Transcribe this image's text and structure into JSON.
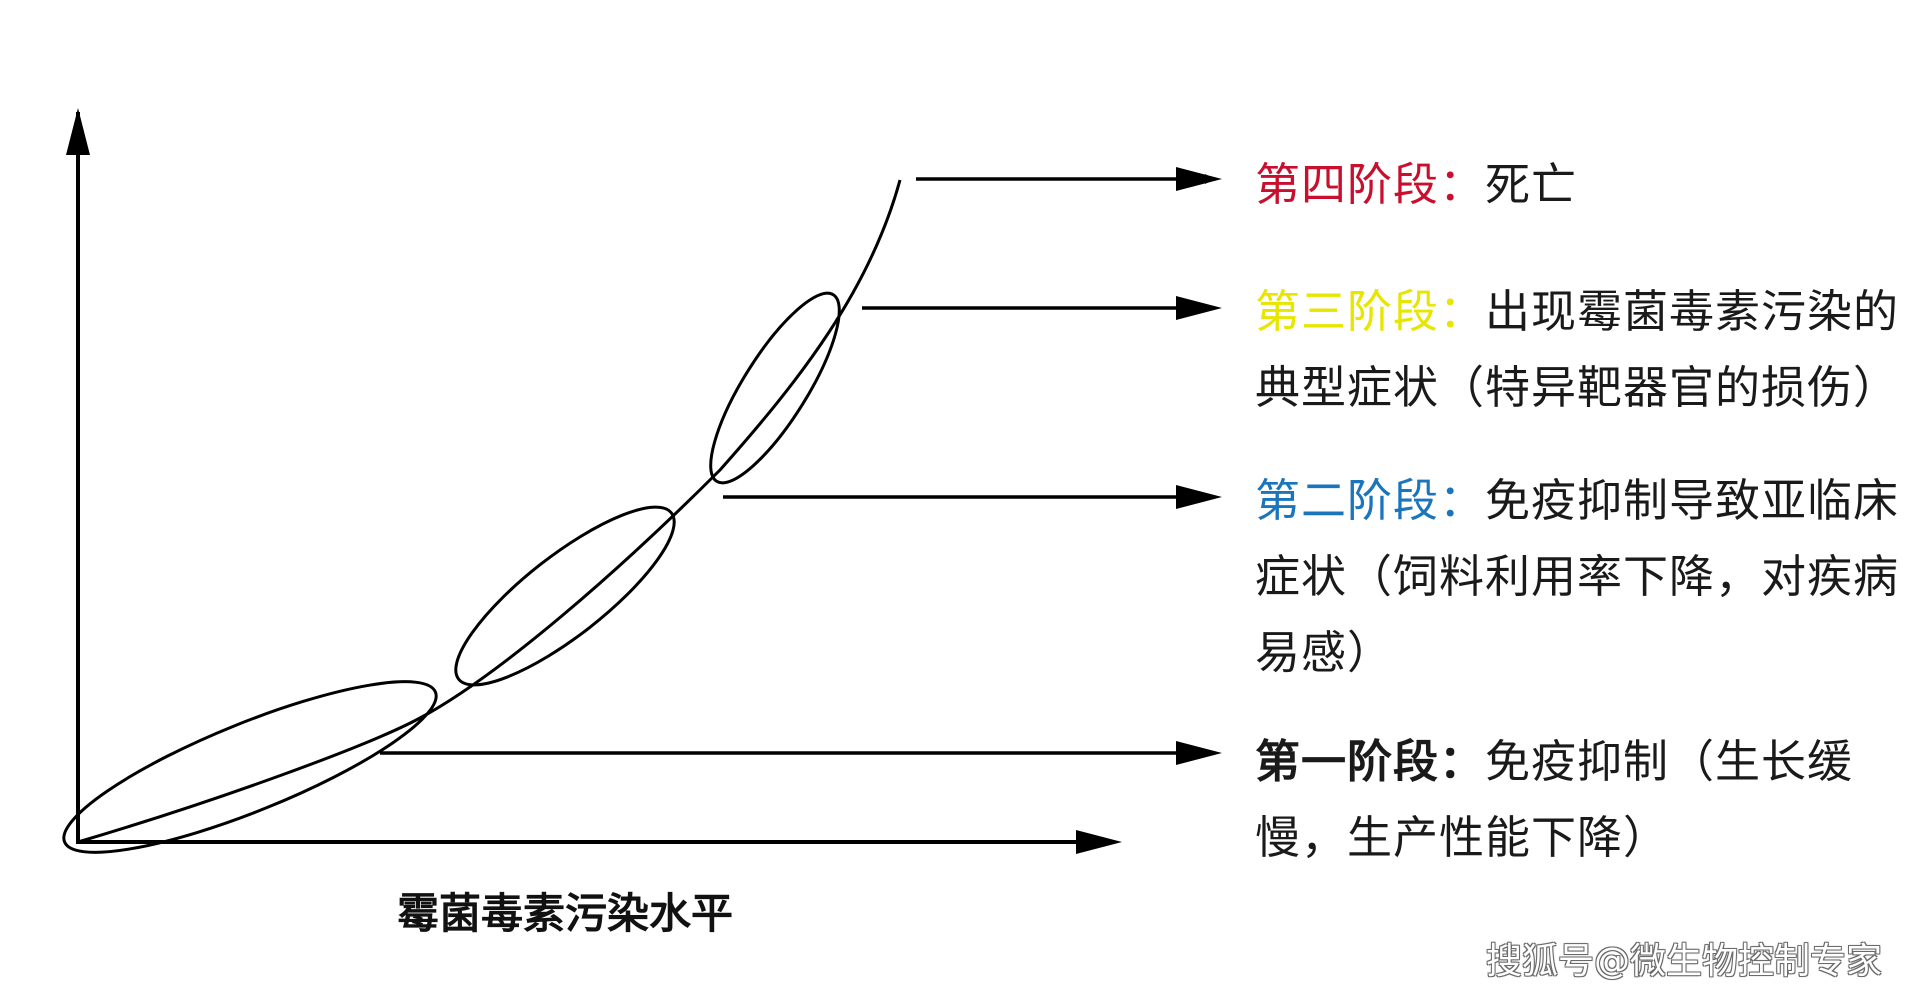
{
  "colors": {
    "stage4": "#c8102e",
    "stage3": "#e6e600",
    "stage2": "#1a75bc",
    "stage1": "#1a1a1a",
    "text": "#1a1a1a"
  },
  "x_axis_label": "霉菌毒素污染水平",
  "stages": {
    "stage4": {
      "label": "第四阶段：",
      "text": "死亡"
    },
    "stage3": {
      "label": "第三阶段：",
      "text": "出现霉菌毒素污染的典型症状（特异靶器官的损伤）"
    },
    "stage2": {
      "label": "第二阶段：",
      "text": "免疫抑制导致亚临床症状（饲料利用率下降，对疾病易感）"
    },
    "stage1": {
      "label": "第一阶段：",
      "text": "免疫抑制（生长缓慢，生产性能下降）"
    }
  },
  "watermark": "搜狐号@微生物控制专家"
}
